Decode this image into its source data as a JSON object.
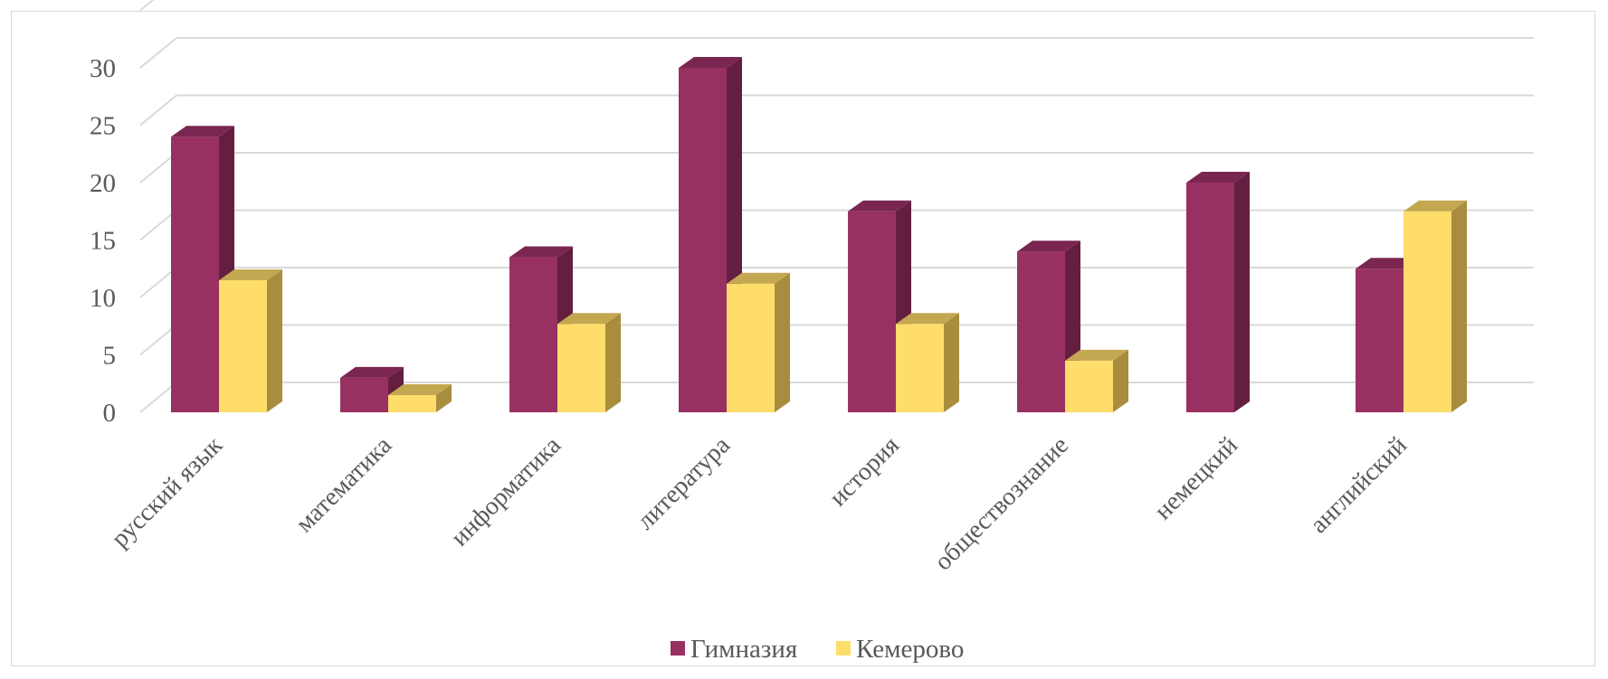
{
  "chart_data": {
    "type": "bar",
    "style": "3d-clustered-column",
    "categories": [
      "русский язык",
      "математика",
      "информатика",
      "литература",
      "история",
      "обществознание",
      "немецкий",
      "английский"
    ],
    "series": [
      {
        "name": "Гимназия",
        "color": "#983162",
        "side_color": "#641f40",
        "top_color": "#7a2651",
        "values": [
          24,
          3,
          13.5,
          30,
          17.5,
          14,
          20,
          12.5
        ]
      },
      {
        "name": "Кемерово",
        "color": "#ffdd6b",
        "side_color": "#a88d3f",
        "top_color": "#c4a851",
        "values": [
          11.5,
          1.5,
          7.7,
          11.2,
          7.7,
          4.5,
          null,
          17.5
        ]
      }
    ],
    "y_ticks": [
      "0",
      "5",
      "10",
      "15",
      "20",
      "25",
      "30"
    ],
    "ylim": [
      0,
      32
    ],
    "grid": true,
    "legend_position": "bottom"
  }
}
